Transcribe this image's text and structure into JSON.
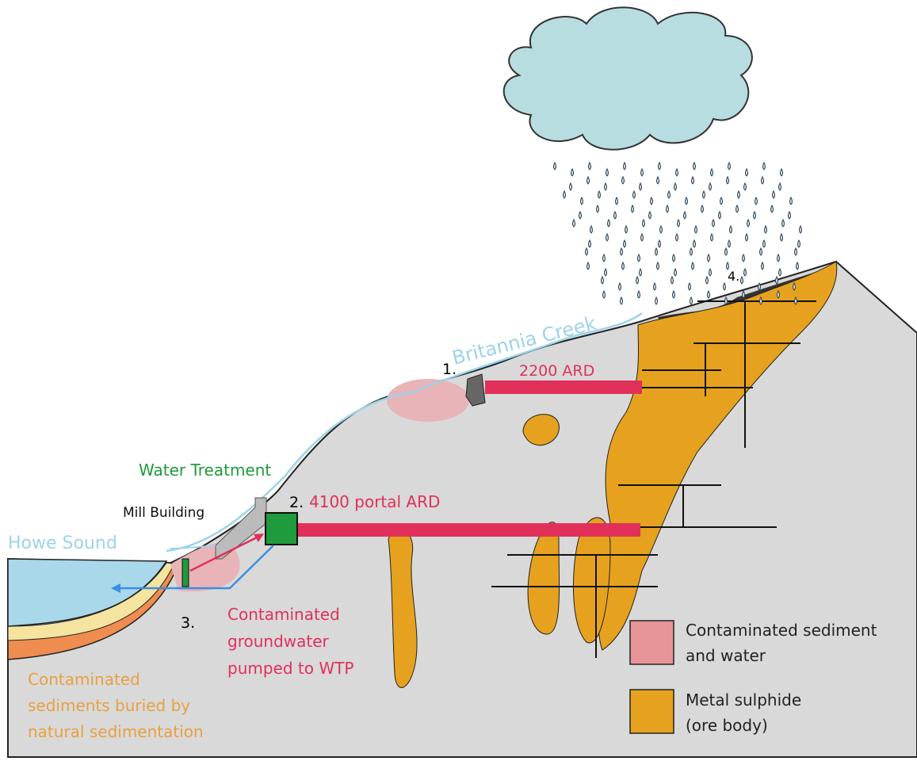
{
  "labels": {
    "creek": "Britannia Creek",
    "point1": "1.",
    "ard2200": "2200 ARD",
    "water_treatment": "Water Treatment",
    "mill": "Mill Building",
    "point2": "2.",
    "ard4100": "4100 portal ARD",
    "howe": "Howe Sound",
    "point3": "3.",
    "groundwater": [
      "Contaminated",
      "groundwater",
      "pumped to WTP"
    ],
    "sediments": [
      "Contaminated",
      "sediments buried by",
      "natural sedimentation"
    ],
    "point4": "4."
  },
  "legend": [
    {
      "lines": [
        "Contaminated sediment",
        "and water"
      ]
    },
    {
      "lines": [
        "Metal sulphide",
        "(ore body)"
      ]
    }
  ]
}
